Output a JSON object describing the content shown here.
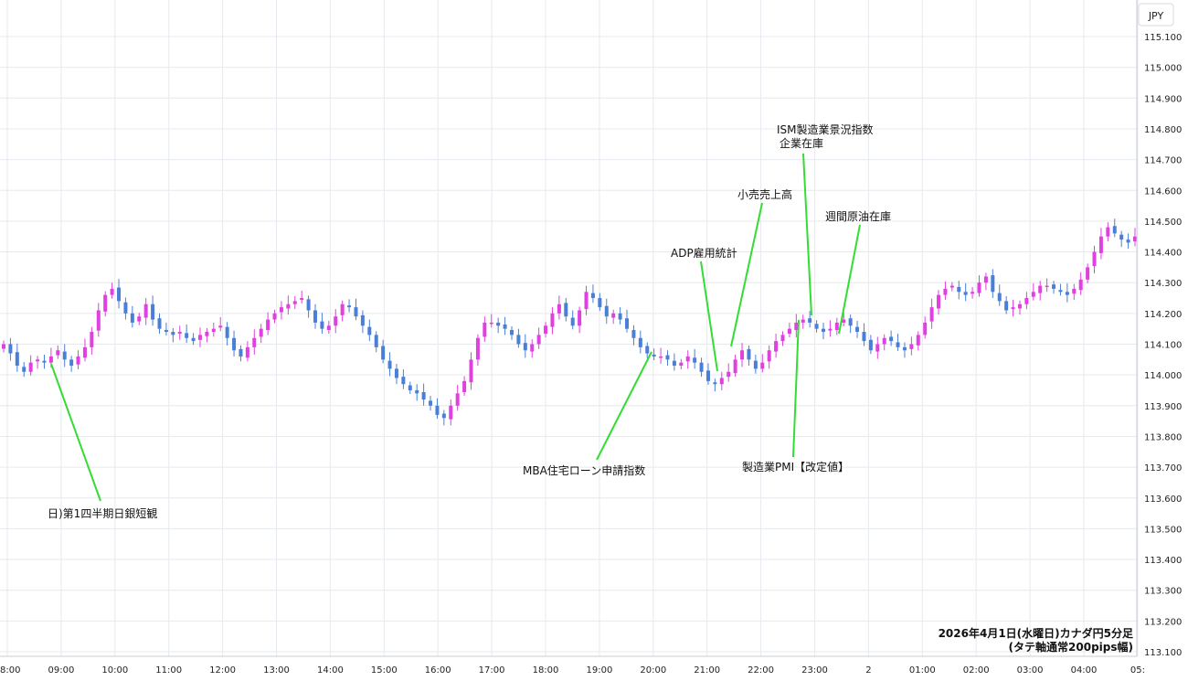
{
  "chart_data": {
    "type": "candlestick",
    "currency_unit": "JPY",
    "caption_line1": "2026年4月1日(水曜日)カナダ円5分足",
    "caption_line2": "(タテ軸通常200pips幅)",
    "ylim": [
      113.08,
      115.15
    ],
    "y_ticks": [
      "115.100",
      "115.000",
      "114.900",
      "114.800",
      "114.700",
      "114.600",
      "114.500",
      "114.400",
      "114.300",
      "114.200",
      "114.100",
      "114.000",
      "113.900",
      "113.800",
      "113.700",
      "113.600",
      "113.500",
      "113.400",
      "113.300",
      "113.200",
      "113.100"
    ],
    "x_ticks": [
      "8:00",
      "09:00",
      "10:00",
      "11:00",
      "12:00",
      "13:00",
      "14:00",
      "15:00",
      "16:00",
      "17:00",
      "18:00",
      "19:00",
      "20:00",
      "21:00",
      "22:00",
      "23:00",
      "2",
      "01:00",
      "02:00",
      "03:00",
      "04:00",
      "05:"
    ],
    "colors": {
      "up": "#e040e0",
      "down": "#4a7fd8",
      "annotation_line": "#33dd33",
      "grid": "#e6e9ee"
    },
    "series_close": [
      114.1,
      114.07,
      114.03,
      114.01,
      114.04,
      114.05,
      114.04,
      114.06,
      114.08,
      114.05,
      114.03,
      114.06,
      114.09,
      114.14,
      114.21,
      114.26,
      114.28,
      114.24,
      114.2,
      114.17,
      114.19,
      114.23,
      114.18,
      114.15,
      114.14,
      114.13,
      114.14,
      114.12,
      114.11,
      114.13,
      114.14,
      114.15,
      114.16,
      114.12,
      114.08,
      114.06,
      114.09,
      114.12,
      114.15,
      114.18,
      114.2,
      114.22,
      114.23,
      114.24,
      114.25,
      114.21,
      114.17,
      114.15,
      114.16,
      114.19,
      114.23,
      114.22,
      114.19,
      114.16,
      114.13,
      114.09,
      114.05,
      114.02,
      113.99,
      113.97,
      113.95,
      113.94,
      113.92,
      113.9,
      113.87,
      113.86,
      113.9,
      113.94,
      113.98,
      114.05,
      114.12,
      114.17,
      114.17,
      114.16,
      114.15,
      114.13,
      114.1,
      114.08,
      114.1,
      114.13,
      114.16,
      114.2,
      114.23,
      114.19,
      114.16,
      114.21,
      114.27,
      114.25,
      114.22,
      114.19,
      114.2,
      114.18,
      114.15,
      114.12,
      114.09,
      114.07,
      114.06,
      114.06,
      114.05,
      114.03,
      114.04,
      114.06,
      114.04,
      114.01,
      113.98,
      113.97,
      113.99,
      114.01,
      114.05,
      114.08,
      114.05,
      114.02,
      114.04,
      114.08,
      114.11,
      114.13,
      114.15,
      114.17,
      114.18,
      114.17,
      114.15,
      114.14,
      114.15,
      114.17,
      114.18,
      114.16,
      114.14,
      114.11,
      114.08,
      114.1,
      114.12,
      114.11,
      114.09,
      114.08,
      114.1,
      114.13,
      114.17,
      114.22,
      114.26,
      114.28,
      114.29,
      114.27,
      114.26,
      114.27,
      114.3,
      114.32,
      114.27,
      114.24,
      114.21,
      114.22,
      114.23,
      114.25,
      114.27,
      114.29,
      114.29,
      114.28,
      114.27,
      114.26,
      114.28,
      114.31,
      114.35,
      114.4,
      114.45,
      114.48,
      114.46,
      114.44,
      114.43,
      114.45
    ],
    "annotations": [
      {
        "label": "日)第1四半期日銀短観",
        "time": "09:00"
      },
      {
        "label": "MBA住宅ローン申請指数",
        "time": "20:00"
      },
      {
        "label": "ADP雇用統計",
        "time": "21:15"
      },
      {
        "label": "小売売上高",
        "time": "21:30"
      },
      {
        "label": "ISM製造業景況指数",
        "label2": "企業在庫",
        "time": "23:00"
      },
      {
        "label": "製造業PMI【改定値】",
        "time": "22:45"
      },
      {
        "label": "週間原油在庫",
        "time": "23:30"
      }
    ]
  }
}
